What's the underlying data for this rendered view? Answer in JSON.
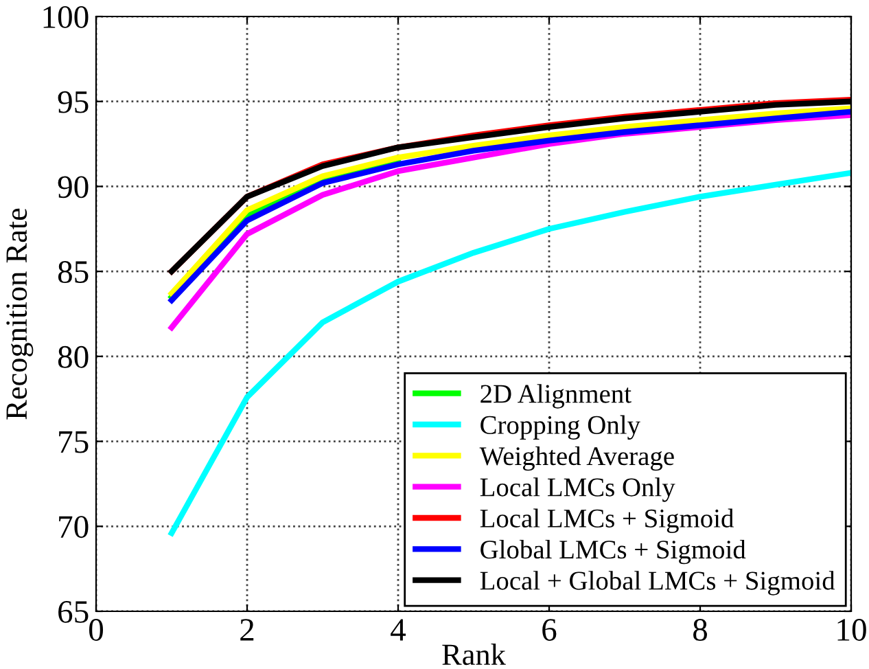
{
  "chart_data": {
    "type": "line",
    "xlabel": "Rank",
    "ylabel": "Recognition Rate",
    "x": [
      1,
      2,
      3,
      4,
      5,
      6,
      7,
      8,
      9,
      10
    ],
    "xlim": [
      0,
      10
    ],
    "ylim": [
      65,
      100
    ],
    "xticks": [
      0,
      2,
      4,
      6,
      8,
      10
    ],
    "yticks": [
      65,
      70,
      75,
      80,
      85,
      90,
      95,
      100
    ],
    "grid": true,
    "legend": "bottom right",
    "marker": "none",
    "line_style": "solid",
    "series": [
      {
        "name": "2D Alignment",
        "color": "#00ff00",
        "values": [
          83.5,
          88.3,
          90.4,
          91.5,
          null,
          null,
          null,
          null,
          null,
          null
        ]
      },
      {
        "name": "Cropping Only",
        "color": "#00ffff",
        "values": [
          69.6,
          77.6,
          82.0,
          84.4,
          86.1,
          87.5,
          88.5,
          89.4,
          90.1,
          90.8
        ]
      },
      {
        "name": "Weighted Average",
        "color": "#ffff00",
        "values": [
          83.7,
          88.6,
          90.6,
          91.7,
          92.4,
          93.0,
          93.5,
          93.9,
          94.3,
          94.6
        ]
      },
      {
        "name": "Local LMCs Only",
        "color": "#ff00ff",
        "values": [
          81.7,
          87.2,
          89.5,
          90.9,
          91.7,
          92.5,
          93.1,
          93.5,
          93.9,
          94.2
        ]
      },
      {
        "name": "Local LMCs + Sigmoid",
        "color": "#ff0000",
        "values": [
          85.0,
          89.4,
          91.3,
          92.3,
          93.0,
          93.6,
          94.1,
          94.5,
          94.9,
          95.1
        ]
      },
      {
        "name": "Global LMCs + Sigmoid",
        "color": "#0000ff",
        "values": [
          83.3,
          88.0,
          90.2,
          91.3,
          92.1,
          92.7,
          93.2,
          93.6,
          94.0,
          94.4
        ]
      },
      {
        "name": "Local + Global LMCs + Sigmoid",
        "color": "#000000",
        "values": [
          85.0,
          89.4,
          91.2,
          92.3,
          92.9,
          93.5,
          94.0,
          94.4,
          94.8,
          95.0
        ]
      }
    ]
  }
}
